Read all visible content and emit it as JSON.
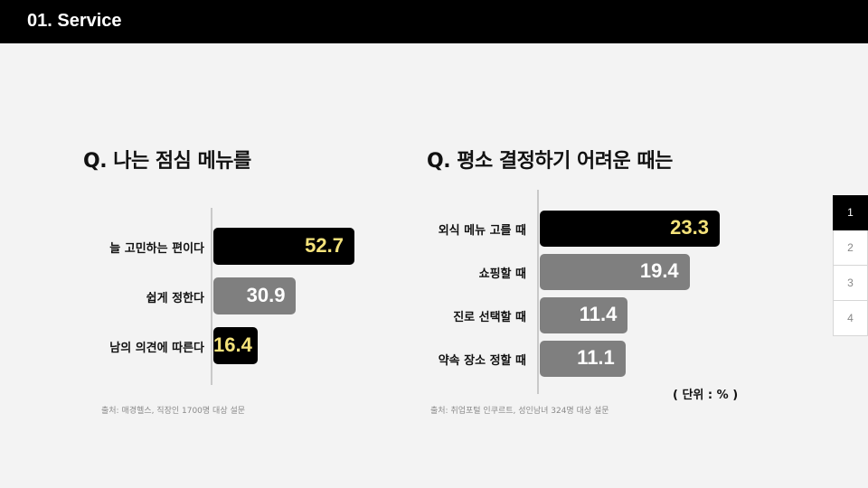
{
  "header": {
    "title": "01. Service"
  },
  "pager": {
    "pages": [
      "1",
      "2",
      "3",
      "4"
    ],
    "active": 0
  },
  "chart_data": [
    {
      "type": "bar",
      "orientation": "horizontal",
      "title": "Q. 나는 점심 메뉴를",
      "categories": [
        "늘 고민하는 편이다",
        "쉽게 정한다",
        "남의 의견에 따른다"
      ],
      "values": [
        52.7,
        30.9,
        16.4
      ],
      "value_labels": [
        "52.7",
        "30.9",
        "16.4"
      ],
      "highlight": [
        true,
        false,
        true
      ],
      "source": "출처: 매경헬스, 직장인 1700명 대상 설문"
    },
    {
      "type": "bar",
      "orientation": "horizontal",
      "title": "Q. 평소 결정하기 어려운 때는",
      "categories": [
        "외식 메뉴 고를 때",
        "쇼핑할 때",
        "진로 선택할 때",
        "약속 장소 정할 때"
      ],
      "values": [
        23.3,
        19.4,
        11.4,
        11.1
      ],
      "value_labels": [
        "23.3",
        "19.4",
        "11.4",
        "11.1"
      ],
      "highlight": [
        true,
        false,
        false,
        false
      ],
      "source": "출처: 취업포털 인쿠르트, 성인남녀 324명 대상 설문",
      "unit": "( 단위 : % )"
    }
  ],
  "colors": {
    "highlight_bar": "#000000",
    "normal_bar": "#7f7f7f",
    "highlight_text": "#f4e27a",
    "normal_text": "#ffffff"
  }
}
